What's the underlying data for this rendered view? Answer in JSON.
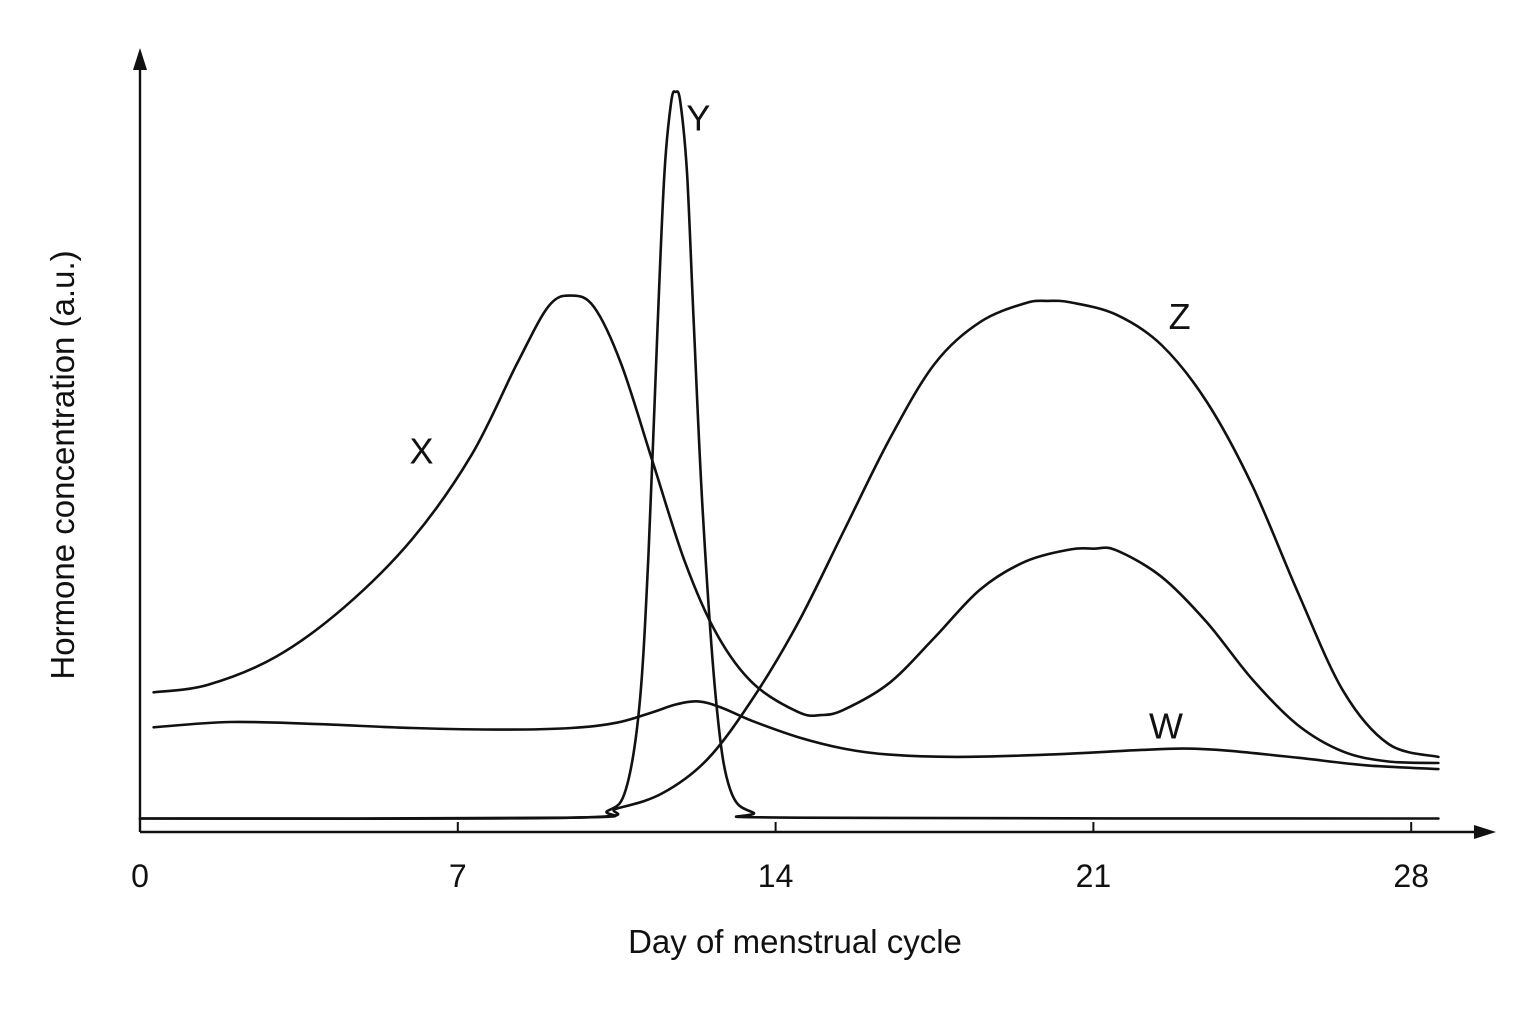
{
  "chart_data": {
    "type": "line",
    "title": "",
    "xlabel": "Day of menstrual cycle",
    "ylabel": "Hormone concentration (a.u.)",
    "xlim": [
      0,
      29.5
    ],
    "ylim": [
      0,
      100
    ],
    "xticks": [
      0,
      7,
      14,
      21,
      28
    ],
    "xtick_labels": [
      "0",
      "7",
      "14",
      "21",
      "28"
    ],
    "grid": false,
    "legend": "none",
    "line_color": "#111111",
    "series": [
      {
        "name": "X",
        "label_at": [
          6.2,
          48.5
        ],
        "points": [
          [
            0.3,
            16.8
          ],
          [
            1.5,
            17.8
          ],
          [
            3,
            21.5
          ],
          [
            4.5,
            28
          ],
          [
            6,
            37
          ],
          [
            7.3,
            48
          ],
          [
            8.3,
            60
          ],
          [
            9,
            67.6
          ],
          [
            9.5,
            69
          ],
          [
            10,
            67.5
          ],
          [
            10.6,
            60
          ],
          [
            11.3,
            47
          ],
          [
            12,
            34
          ],
          [
            12.7,
            24.5
          ],
          [
            13.5,
            18
          ],
          [
            14.5,
            14.2
          ],
          [
            15,
            13.8
          ],
          [
            15.5,
            14.5
          ],
          [
            16.5,
            18
          ],
          [
            17.5,
            24
          ],
          [
            18.5,
            30.3
          ],
          [
            19.5,
            34
          ],
          [
            20.5,
            35.6
          ],
          [
            21,
            35.7
          ],
          [
            21.5,
            35.5
          ],
          [
            22.5,
            32
          ],
          [
            23.5,
            26
          ],
          [
            24.5,
            18.5
          ],
          [
            25.5,
            12.5
          ],
          [
            26.5,
            9
          ],
          [
            27.5,
            7.7
          ],
          [
            28.6,
            7.5
          ]
        ]
      },
      {
        "name": "Y",
        "label_at": [
          12.3,
          92.3
        ],
        "points": [
          [
            0,
            0.2
          ],
          [
            9.5,
            0.3
          ],
          [
            10.3,
            1.2
          ],
          [
            10.7,
            4
          ],
          [
            11,
            15
          ],
          [
            11.2,
            35
          ],
          [
            11.4,
            65
          ],
          [
            11.55,
            85
          ],
          [
            11.7,
            94.5
          ],
          [
            11.8,
            95.8
          ],
          [
            11.9,
            94.5
          ],
          [
            12.05,
            85
          ],
          [
            12.2,
            65
          ],
          [
            12.4,
            40
          ],
          [
            12.7,
            15
          ],
          [
            13,
            4
          ],
          [
            13.5,
            1
          ],
          [
            14.5,
            0.3
          ],
          [
            28.6,
            0.2
          ]
        ]
      },
      {
        "name": "Z",
        "label_at": [
          22.9,
          66.2
        ],
        "points": [
          [
            0,
            0.2
          ],
          [
            9.5,
            0.3
          ],
          [
            10.5,
            1.5
          ],
          [
            11.5,
            3.5
          ],
          [
            12.5,
            8
          ],
          [
            13.5,
            16
          ],
          [
            14.5,
            26
          ],
          [
            15.5,
            38
          ],
          [
            16.5,
            50
          ],
          [
            17.5,
            60
          ],
          [
            18.5,
            65.5
          ],
          [
            19.5,
            68
          ],
          [
            20,
            68.3
          ],
          [
            20.5,
            68.1
          ],
          [
            21.5,
            66.5
          ],
          [
            22.5,
            62.5
          ],
          [
            23.5,
            55
          ],
          [
            24.5,
            44
          ],
          [
            25.5,
            30
          ],
          [
            26.5,
            17
          ],
          [
            27.5,
            10
          ],
          [
            28.6,
            8.3
          ]
        ]
      },
      {
        "name": "W",
        "label_at": [
          22.6,
          12.3
        ],
        "points": [
          [
            0.3,
            12.2
          ],
          [
            2,
            12.9
          ],
          [
            4,
            12.6
          ],
          [
            6,
            12.1
          ],
          [
            8,
            11.9
          ],
          [
            9.5,
            12.1
          ],
          [
            10.5,
            12.8
          ],
          [
            11.3,
            14.2
          ],
          [
            11.8,
            15.2
          ],
          [
            12.3,
            15.6
          ],
          [
            12.8,
            14.8
          ],
          [
            13.5,
            13
          ],
          [
            14.5,
            10.9
          ],
          [
            15.5,
            9.4
          ],
          [
            16.5,
            8.6
          ],
          [
            18,
            8.3
          ],
          [
            20,
            8.6
          ],
          [
            22,
            9.2
          ],
          [
            23,
            9.4
          ],
          [
            24,
            9.1
          ],
          [
            25.5,
            8.2
          ],
          [
            27,
            7.2
          ],
          [
            28.6,
            6.7
          ]
        ]
      }
    ]
  }
}
